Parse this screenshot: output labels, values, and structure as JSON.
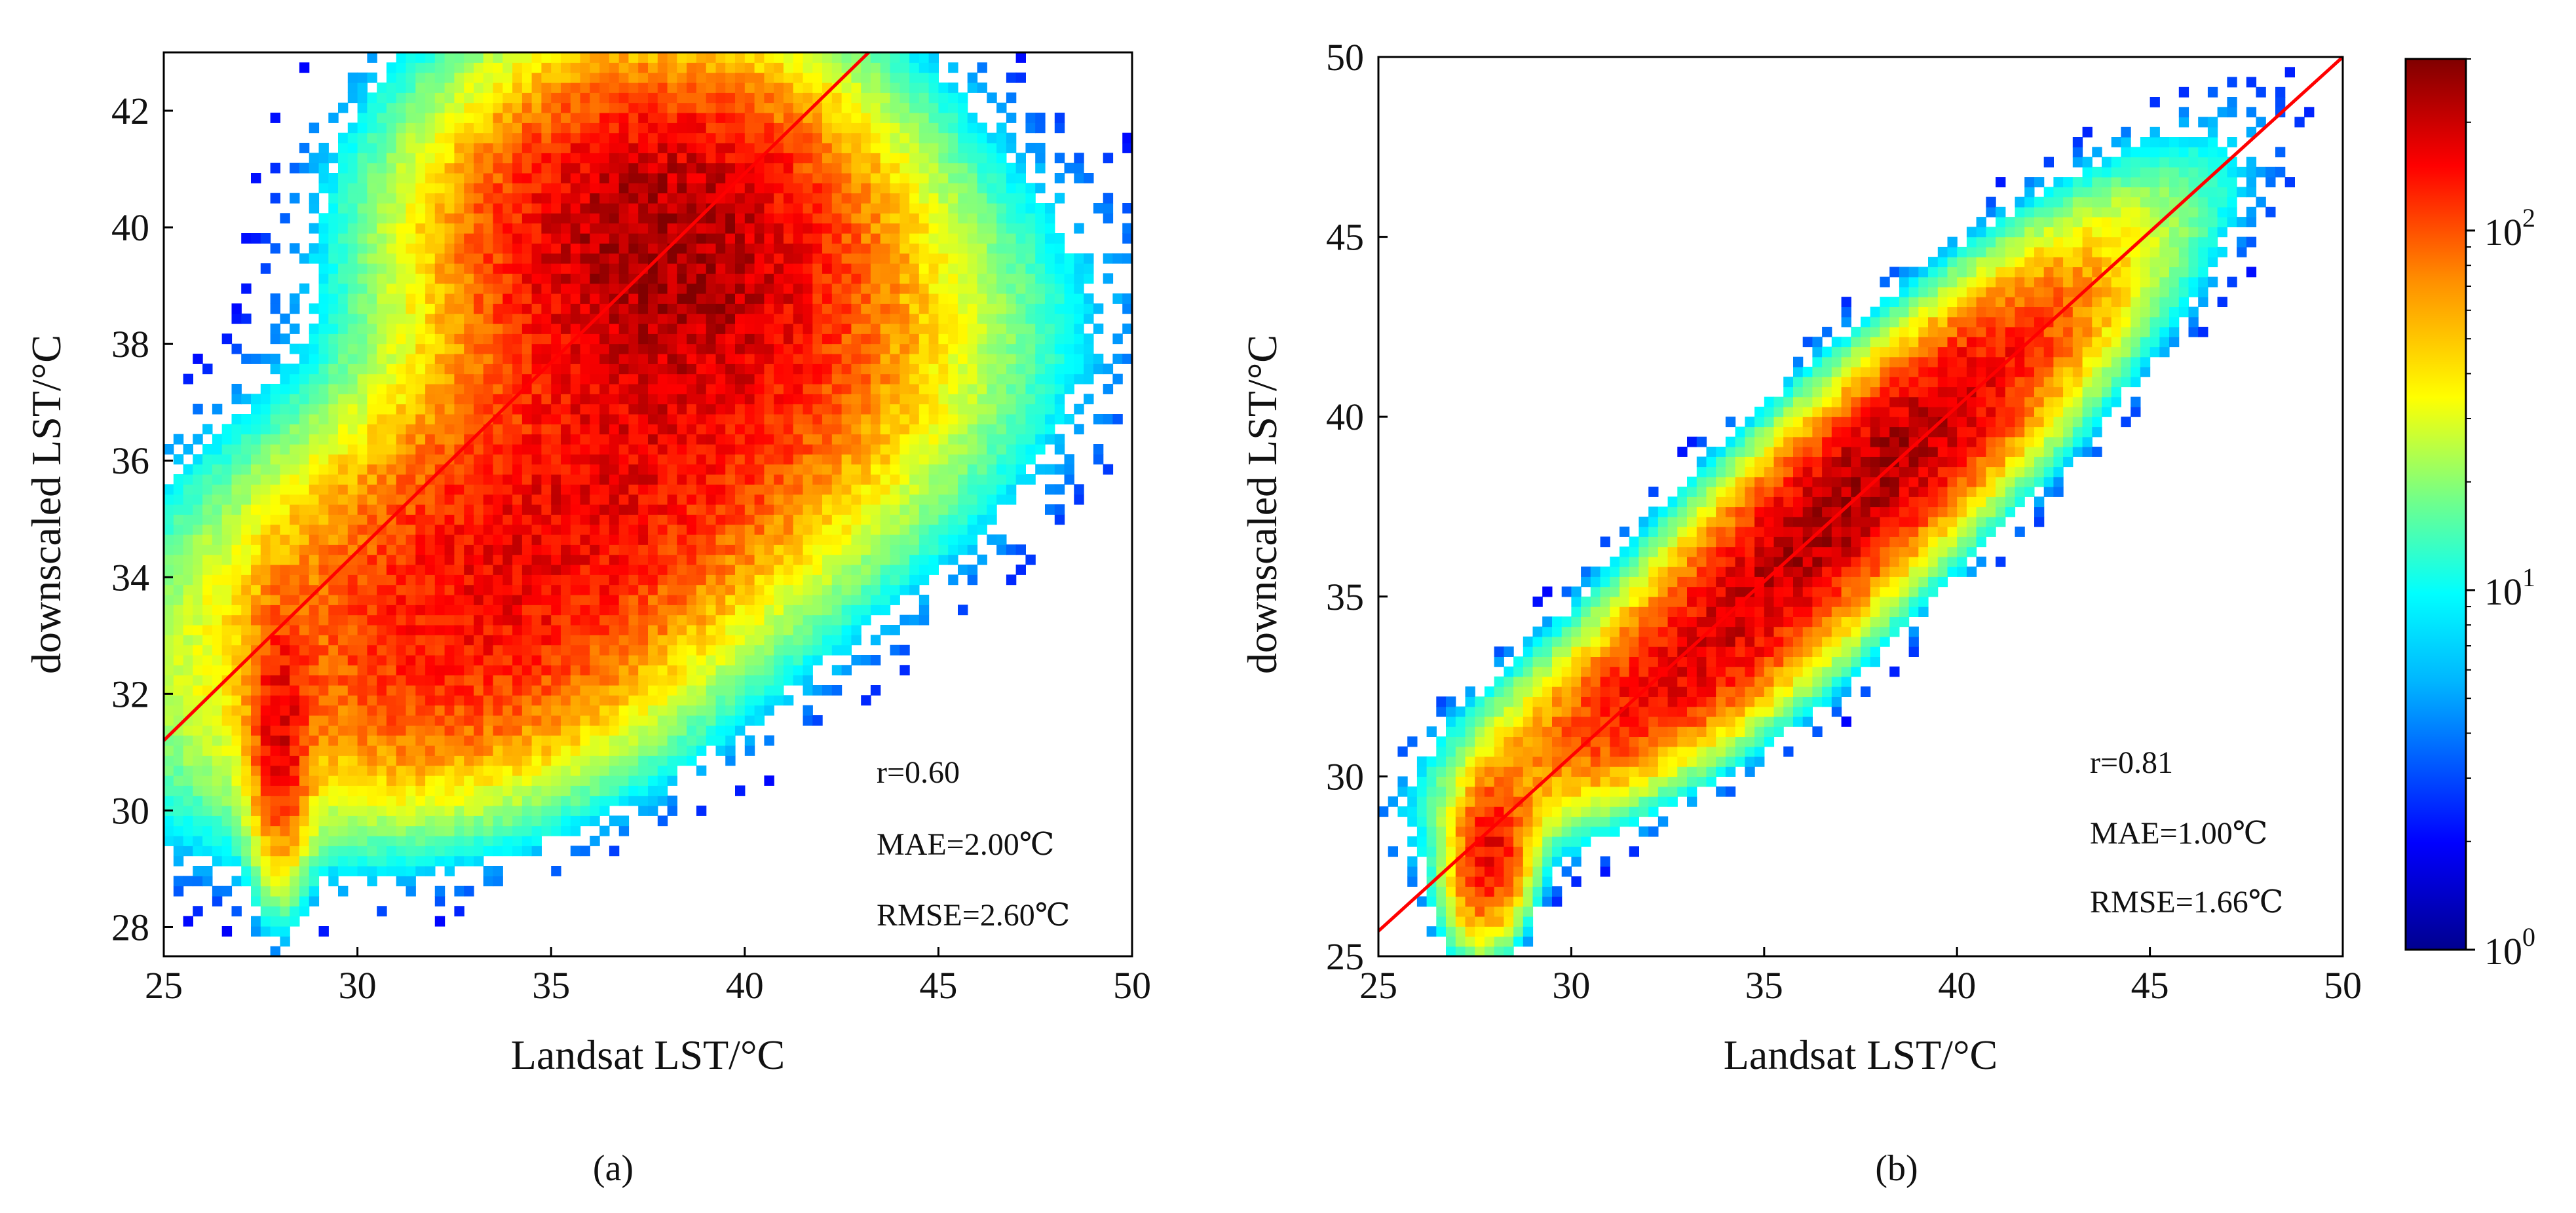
{
  "chart_data": [
    {
      "type": "scatter",
      "panel": "a",
      "caption": "(a)",
      "xlabel": "Landsat LST/°C",
      "ylabel": "downscaled LST/°C",
      "xlim": [
        25,
        50
      ],
      "ylim": [
        27.5,
        43
      ],
      "xticks": [
        "25",
        "30",
        "35",
        "40",
        "45",
        "50"
      ],
      "yticks": [
        "28",
        "30",
        "32",
        "34",
        "36",
        "38",
        "40",
        "42"
      ],
      "xtick_values": [
        25,
        30,
        35,
        40,
        45,
        50
      ],
      "ytick_values": [
        28,
        30,
        32,
        34,
        36,
        38,
        40,
        42
      ],
      "fit_line": {
        "x": [
          25,
          43.2
        ],
        "y": [
          31.2,
          43.0
        ],
        "color": "#ff0000"
      },
      "stats": [
        "r=0.60",
        "MAE=2.00℃",
        "RMSE=2.60℃"
      ],
      "clusters": [
        {
          "x": 37.8,
          "y": 39.8,
          "sx": 3.2,
          "sy": 1.8,
          "rho": 0.0,
          "w": 1.0
        },
        {
          "x": 35.5,
          "y": 35.2,
          "sx": 5.2,
          "sy": 2.2,
          "rho": 0.55,
          "w": 0.6
        },
        {
          "x": 28.0,
          "y": 31.2,
          "sx": 0.45,
          "sy": 1.3,
          "rho": 0.0,
          "w": 0.55
        },
        {
          "x": 33.0,
          "y": 32.2,
          "sx": 3.2,
          "sy": 1.4,
          "rho": 0.3,
          "w": 0.25
        }
      ]
    },
    {
      "type": "scatter",
      "panel": "b",
      "caption": "(b)",
      "xlabel": "Landsat LST/°C",
      "ylabel": "downscaled LST/°C",
      "xlim": [
        25,
        50
      ],
      "ylim": [
        25,
        50
      ],
      "xticks": [
        "25",
        "30",
        "35",
        "40",
        "45",
        "50"
      ],
      "yticks": [
        "25",
        "30",
        "35",
        "40",
        "45",
        "50"
      ],
      "xtick_values": [
        25,
        30,
        35,
        40,
        45,
        50
      ],
      "ytick_values": [
        25,
        30,
        35,
        40,
        45,
        50
      ],
      "fit_line": {
        "x": [
          25,
          50
        ],
        "y": [
          25.7,
          50.0
        ],
        "color": "#ff0000"
      },
      "stats": [
        "r=0.81",
        "MAE=1.00℃",
        "RMSE=1.66℃"
      ],
      "clusters": [
        {
          "x": 37.5,
          "y": 38.0,
          "sx": 3.6,
          "sy": 3.6,
          "rho": 0.88,
          "w": 1.0
        },
        {
          "x": 27.9,
          "y": 27.8,
          "sx": 0.6,
          "sy": 1.3,
          "rho": 0.2,
          "w": 0.6
        },
        {
          "x": 32.0,
          "y": 32.2,
          "sx": 2.6,
          "sy": 1.8,
          "rho": 0.7,
          "w": 0.35
        }
      ]
    }
  ],
  "colorbar": {
    "scale": "log",
    "min": 1,
    "max": 300,
    "tick_values": [
      1,
      10,
      100
    ],
    "tick_bases": [
      "10",
      "10",
      "10"
    ],
    "tick_exponents": [
      "0",
      "1",
      "2"
    ],
    "colormap": "jet"
  }
}
